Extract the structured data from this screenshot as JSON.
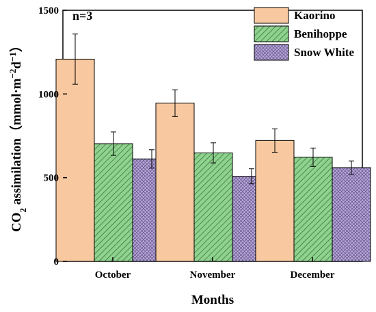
{
  "chart_data": {
    "type": "bar",
    "annotation": "n=3",
    "xlabel": "Months",
    "ylabel": {
      "pre": "CO",
      "sub": "2",
      "mid": " assimilation（mmol·m",
      "sup1": "−2",
      "mid2": "d",
      "sup2": "−1",
      "post": "）"
    },
    "ylim": [
      0,
      1500
    ],
    "yticks": [
      "0",
      "500",
      "1000",
      "1500"
    ],
    "ytick_values": [
      0,
      500,
      1000,
      1500
    ],
    "categories": [
      "October",
      "November",
      "December"
    ],
    "series": [
      {
        "name": "Kaorino",
        "values": [
          1208,
          945,
          722
        ],
        "errors": [
          150,
          80,
          70
        ],
        "color": "#f8c9a0",
        "pattern": "solid"
      },
      {
        "name": "Benihoppe",
        "values": [
          703,
          648,
          622
        ],
        "errors": [
          70,
          60,
          55
        ],
        "color": "#8fd18f",
        "pattern": "hatch"
      },
      {
        "name": "Snow White",
        "values": [
          612,
          508,
          560
        ],
        "errors": [
          55,
          45,
          40
        ],
        "color": "#b8a8d8",
        "pattern": "crosshatch"
      }
    ],
    "legend_position": "top-right",
    "grid": false
  }
}
